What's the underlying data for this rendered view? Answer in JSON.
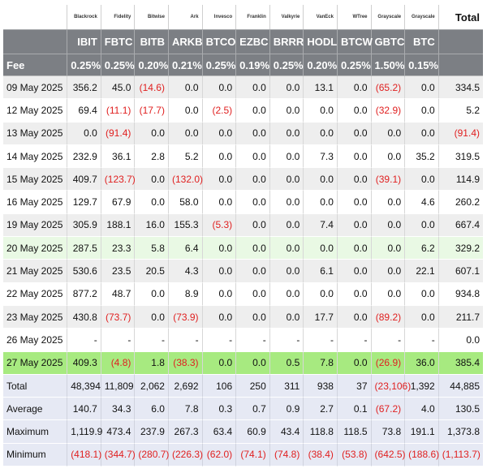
{
  "table": {
    "total_header": "Total",
    "fee_label": "Fee",
    "funds": [
      {
        "issuer": "Blackrock",
        "ticker": "IBIT",
        "fee": "0.25%"
      },
      {
        "issuer": "Fidelity",
        "ticker": "FBTC",
        "fee": "0.25%"
      },
      {
        "issuer": "Bitwise",
        "ticker": "BITB",
        "fee": "0.20%"
      },
      {
        "issuer": "Ark",
        "ticker": "ARKB",
        "fee": "0.21%"
      },
      {
        "issuer": "Invesco",
        "ticker": "BTCO",
        "fee": "0.25%"
      },
      {
        "issuer": "Franklin",
        "ticker": "EZBC",
        "fee": "0.19%"
      },
      {
        "issuer": "Valkyrie",
        "ticker": "BRRR",
        "fee": "0.25%"
      },
      {
        "issuer": "VanEck",
        "ticker": "HODL",
        "fee": "0.20%"
      },
      {
        "issuer": "WTree",
        "ticker": "BTCW",
        "fee": "0.25%"
      },
      {
        "issuer": "Grayscale",
        "ticker": "GBTC",
        "fee": "1.50%"
      },
      {
        "issuer": "Grayscale",
        "ticker": "BTC",
        "fee": "0.15%"
      }
    ],
    "rows": [
      {
        "date": "09 May 2025",
        "values": [
          "356.2",
          "45.0",
          "(14.6)",
          "0.0",
          "0.0",
          "0.0",
          "0.0",
          "13.1",
          "0.0",
          "(65.2)",
          "0.0"
        ],
        "total": "334.5",
        "style": "odd"
      },
      {
        "date": "12 May 2025",
        "values": [
          "69.4",
          "(11.1)",
          "(17.7)",
          "0.0",
          "(2.5)",
          "0.0",
          "0.0",
          "0.0",
          "0.0",
          "(32.9)",
          "0.0"
        ],
        "total": "5.2",
        "style": "even"
      },
      {
        "date": "13 May 2025",
        "values": [
          "0.0",
          "(91.4)",
          "0.0",
          "0.0",
          "0.0",
          "0.0",
          "0.0",
          "0.0",
          "0.0",
          "0.0",
          "0.0"
        ],
        "total": "(91.4)",
        "style": "odd"
      },
      {
        "date": "14 May 2025",
        "values": [
          "232.9",
          "36.1",
          "2.8",
          "5.2",
          "0.0",
          "0.0",
          "0.0",
          "7.3",
          "0.0",
          "0.0",
          "35.2"
        ],
        "total": "319.5",
        "style": "even"
      },
      {
        "date": "15 May 2025",
        "values": [
          "409.7",
          "(123.7)",
          "0.0",
          "(132.0)",
          "0.0",
          "0.0",
          "0.0",
          "0.0",
          "0.0",
          "(39.1)",
          "0.0"
        ],
        "total": "114.9",
        "style": "odd"
      },
      {
        "date": "16 May 2025",
        "values": [
          "129.7",
          "67.9",
          "0.0",
          "58.0",
          "0.0",
          "0.0",
          "0.0",
          "0.0",
          "0.0",
          "0.0",
          "4.6"
        ],
        "total": "260.2",
        "style": "even"
      },
      {
        "date": "19 May 2025",
        "values": [
          "305.9",
          "188.1",
          "16.0",
          "155.3",
          "(5.3)",
          "0.0",
          "0.0",
          "7.4",
          "0.0",
          "0.0",
          "0.0"
        ],
        "total": "667.4",
        "style": "odd"
      },
      {
        "date": "20 May 2025",
        "values": [
          "287.5",
          "23.3",
          "5.8",
          "6.4",
          "0.0",
          "0.0",
          "0.0",
          "0.0",
          "0.0",
          "0.0",
          "6.2"
        ],
        "total": "329.2",
        "style": "green-light"
      },
      {
        "date": "21 May 2025",
        "values": [
          "530.6",
          "23.5",
          "20.5",
          "4.3",
          "0.0",
          "0.0",
          "0.0",
          "6.1",
          "0.0",
          "0.0",
          "22.1"
        ],
        "total": "607.1",
        "style": "odd"
      },
      {
        "date": "22 May 2025",
        "values": [
          "877.2",
          "48.7",
          "0.0",
          "8.9",
          "0.0",
          "0.0",
          "0.0",
          "0.0",
          "0.0",
          "0.0",
          "0.0"
        ],
        "total": "934.8",
        "style": "even"
      },
      {
        "date": "23 May 2025",
        "values": [
          "430.8",
          "(73.7)",
          "0.0",
          "(73.9)",
          "0.0",
          "0.0",
          "0.0",
          "17.7",
          "0.0",
          "(89.2)",
          "0.0"
        ],
        "total": "211.7",
        "style": "odd"
      },
      {
        "date": "26 May 2025",
        "values": [
          "-",
          "-",
          "-",
          "-",
          "-",
          "-",
          "-",
          "-",
          "-",
          "-",
          "-"
        ],
        "total": "0.0",
        "style": "even"
      },
      {
        "date": "27 May 2025",
        "values": [
          "409.3",
          "(4.8)",
          "1.8",
          "(38.3)",
          "0.0",
          "0.0",
          "0.5",
          "7.8",
          "0.0",
          "(26.9)",
          "36.0"
        ],
        "total": "385.4",
        "style": "green-bright"
      }
    ],
    "summary": [
      {
        "label": "Total",
        "values": [
          "48,394",
          "11,809",
          "2,062",
          "2,692",
          "106",
          "250",
          "311",
          "938",
          "37",
          "(23,106)",
          "1,392"
        ],
        "total": "44,885"
      },
      {
        "label": "Average",
        "values": [
          "140.7",
          "34.3",
          "6.0",
          "7.8",
          "0.3",
          "0.7",
          "0.9",
          "2.7",
          "0.1",
          "(67.2)",
          "4.0"
        ],
        "total": "130.5"
      },
      {
        "label": "Maximum",
        "values": [
          "1,119.9",
          "473.4",
          "237.9",
          "267.3",
          "63.4",
          "60.9",
          "43.4",
          "118.8",
          "118.5",
          "73.8",
          "191.1"
        ],
        "total": "1,373.8"
      },
      {
        "label": "Minimum",
        "values": [
          "(418.1)",
          "(344.7)",
          "(280.7)",
          "(226.3)",
          "(62.0)",
          "(74.1)",
          "(74.8)",
          "(38.4)",
          "(53.8)",
          "(642.5)",
          "(188.6)"
        ],
        "total": "(1,113.7)"
      }
    ]
  },
  "colors": {
    "header_gray": "#7c7f84",
    "row_alt": "#eeeeee",
    "row_highlight_light": "#e9f9e4",
    "row_highlight_bright": "#a7ea80",
    "summary_bg": "#e6e9f4",
    "negative": "#e02020"
  }
}
